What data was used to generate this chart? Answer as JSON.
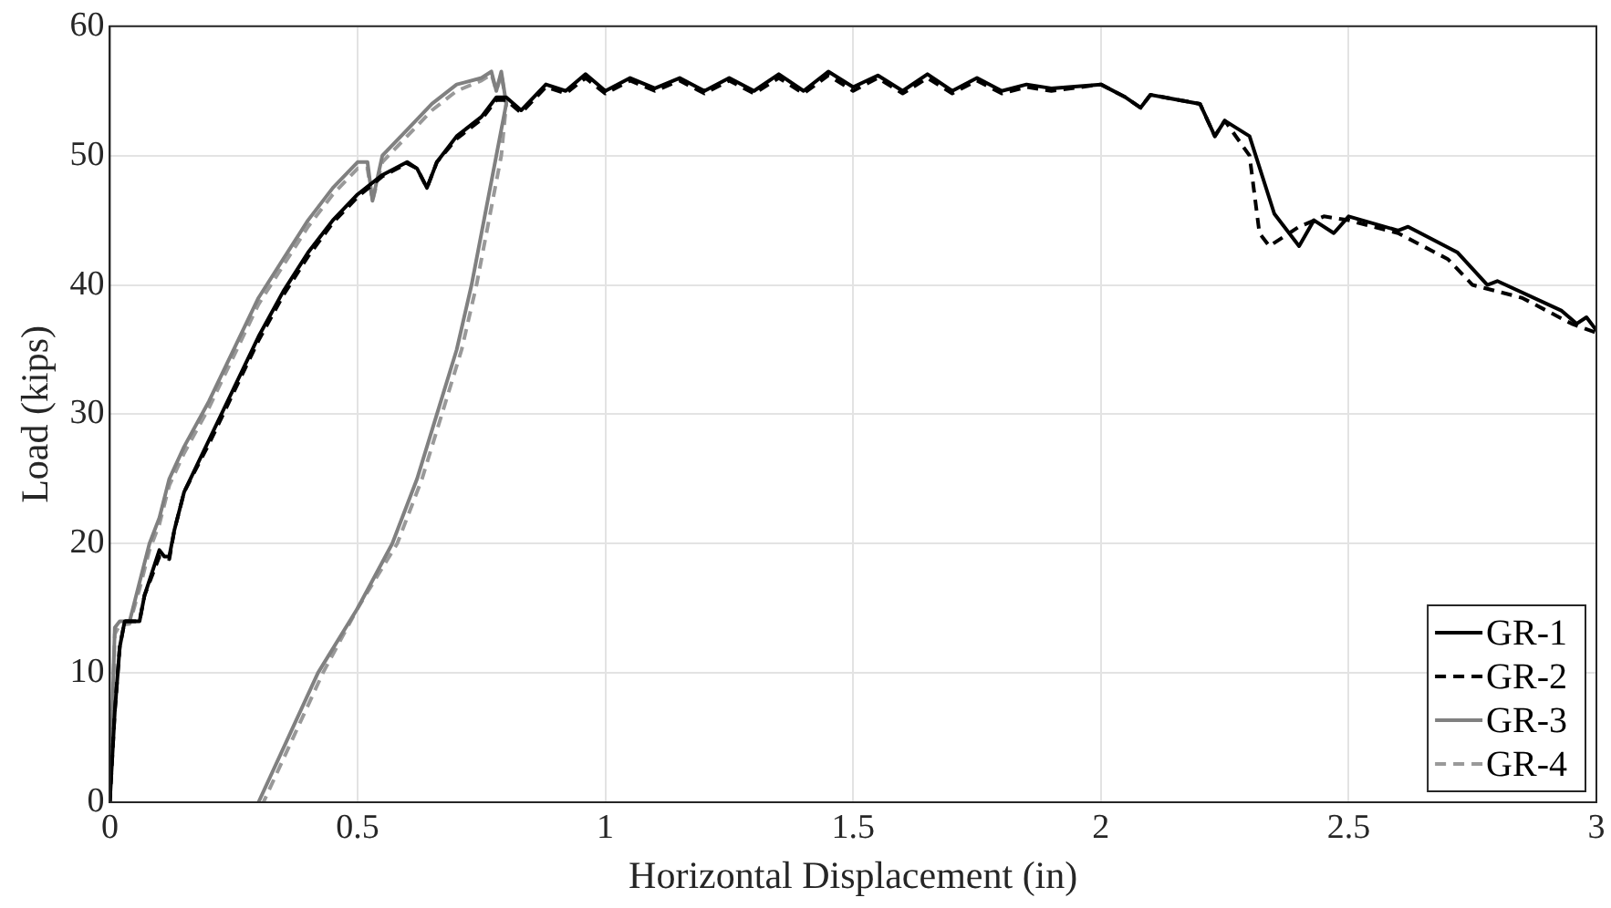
{
  "chart_data": {
    "type": "line",
    "xlabel": "Horizontal Displacement (in)",
    "ylabel": "Load (kips)",
    "xlim": [
      0,
      3
    ],
    "xticks": [
      0,
      0.5,
      1,
      1.5,
      2,
      2.5,
      3
    ],
    "ylim": [
      0,
      60
    ],
    "yticks": [
      0,
      10,
      20,
      30,
      40,
      50,
      60
    ],
    "grid": true,
    "legend": "bottom right",
    "marker": "none",
    "series": [
      {
        "name": "GR-1",
        "color": "#000000",
        "line_style": "solid",
        "x": [
          0,
          0.01,
          0.02,
          0.03,
          0.06,
          0.07,
          0.1,
          0.11,
          0.12,
          0.13,
          0.15,
          0.2,
          0.25,
          0.3,
          0.35,
          0.4,
          0.45,
          0.5,
          0.55,
          0.6,
          0.62,
          0.64,
          0.66,
          0.7,
          0.75,
          0.78,
          0.8,
          0.83,
          0.88,
          0.92,
          0.96,
          1.0,
          1.05,
          1.1,
          1.15,
          1.2,
          1.25,
          1.3,
          1.35,
          1.4,
          1.45,
          1.5,
          1.55,
          1.6,
          1.65,
          1.7,
          1.75,
          1.8,
          1.85,
          1.9,
          2.0,
          2.05,
          2.08,
          2.1,
          2.2,
          2.23,
          2.25,
          2.3,
          2.35,
          2.4,
          2.43,
          2.47,
          2.5,
          2.6,
          2.62,
          2.72,
          2.78,
          2.8,
          2.93,
          2.96,
          2.98,
          3.0
        ],
        "values": [
          0,
          7,
          12,
          14,
          14,
          16,
          19.5,
          19,
          19,
          21,
          24,
          28,
          32,
          36,
          39.5,
          42.5,
          45,
          47,
          48.5,
          49.5,
          49,
          47.5,
          49.5,
          51.5,
          53,
          54.5,
          54.5,
          53.5,
          55.5,
          55,
          56.3,
          55,
          56,
          55.2,
          56,
          55,
          56,
          55,
          56.3,
          55,
          56.5,
          55.3,
          56.2,
          55,
          56.3,
          55,
          56,
          55,
          55.5,
          55.2,
          55.5,
          54.5,
          53.7,
          54.7,
          54,
          51.5,
          52.7,
          51.5,
          45.5,
          43,
          45,
          44,
          45.3,
          44.2,
          44.5,
          42.5,
          40,
          40.3,
          38,
          37,
          37.5,
          36.5
        ]
      },
      {
        "name": "GR-2",
        "color": "#000000",
        "line_style": "dashed",
        "x": [
          0,
          0.01,
          0.02,
          0.03,
          0.06,
          0.07,
          0.1,
          0.11,
          0.12,
          0.13,
          0.15,
          0.2,
          0.25,
          0.3,
          0.35,
          0.4,
          0.45,
          0.5,
          0.55,
          0.6,
          0.62,
          0.64,
          0.66,
          0.7,
          0.75,
          0.78,
          0.8,
          0.83,
          0.88,
          0.92,
          0.96,
          1.0,
          1.05,
          1.1,
          1.15,
          1.2,
          1.25,
          1.3,
          1.35,
          1.4,
          1.45,
          1.5,
          1.55,
          1.6,
          1.65,
          1.7,
          1.75,
          1.8,
          1.85,
          1.9,
          2.0,
          2.05,
          2.08,
          2.1,
          2.2,
          2.23,
          2.25,
          2.3,
          2.32,
          2.34,
          2.4,
          2.45,
          2.5,
          2.6,
          2.7,
          2.75,
          2.85,
          2.9,
          2.95,
          3.0
        ],
        "values": [
          0,
          7,
          12,
          14,
          14,
          16,
          19,
          19,
          18.8,
          21,
          24,
          27.7,
          31.7,
          35.7,
          39.2,
          42.2,
          44.8,
          46.8,
          48.4,
          49.4,
          49,
          47.5,
          49.5,
          51.3,
          52.8,
          54.3,
          54.3,
          53.3,
          55.3,
          54.8,
          56,
          54.8,
          55.8,
          55,
          55.8,
          54.8,
          55.8,
          54.8,
          56,
          54.8,
          56.2,
          55,
          56,
          54.8,
          56,
          54.8,
          55.8,
          54.8,
          55.3,
          55,
          55.5,
          54.5,
          53.7,
          54.7,
          54,
          51.5,
          52.7,
          50,
          44,
          43,
          44.5,
          45.3,
          45,
          44,
          42,
          40,
          39,
          38,
          37,
          36.3
        ]
      },
      {
        "name": "GR-3",
        "color": "#808080",
        "line_style": "solid",
        "x": [
          0,
          0.01,
          0.02,
          0.04,
          0.06,
          0.08,
          0.1,
          0.12,
          0.15,
          0.2,
          0.25,
          0.3,
          0.35,
          0.4,
          0.45,
          0.5,
          0.52,
          0.53,
          0.55,
          0.6,
          0.65,
          0.7,
          0.75,
          0.77,
          0.78,
          0.79,
          0.8,
          0.78,
          0.76,
          0.73,
          0.7,
          0.66,
          0.62,
          0.57,
          0.5,
          0.42,
          0.36,
          0.3
        ],
        "values": [
          0,
          13.5,
          14,
          14,
          17,
          20,
          22,
          25,
          27.5,
          31,
          35,
          39,
          42,
          45,
          47.5,
          49.5,
          49.5,
          46.5,
          50,
          52,
          54,
          55.5,
          56,
          56.5,
          55,
          56.5,
          54,
          50,
          46,
          40,
          35,
          30,
          25,
          20,
          15,
          10,
          5,
          0
        ]
      },
      {
        "name": "GR-4",
        "color": "#999999",
        "line_style": "dashed",
        "x": [
          0,
          0.01,
          0.02,
          0.04,
          0.06,
          0.08,
          0.1,
          0.12,
          0.15,
          0.2,
          0.25,
          0.3,
          0.35,
          0.4,
          0.45,
          0.5,
          0.52,
          0.53,
          0.55,
          0.6,
          0.65,
          0.7,
          0.75,
          0.77,
          0.78,
          0.79,
          0.8,
          0.79,
          0.77,
          0.74,
          0.71,
          0.67,
          0.63,
          0.58,
          0.5,
          0.43,
          0.37,
          0.31
        ],
        "values": [
          0,
          13,
          13.7,
          13.8,
          16.5,
          19.5,
          21.5,
          24.5,
          27,
          30.5,
          34.5,
          38.5,
          41.5,
          44.5,
          47,
          49,
          49,
          46.5,
          49.5,
          51.5,
          53.5,
          55,
          55.8,
          56.3,
          55,
          56.3,
          54,
          50,
          46,
          40,
          35,
          30,
          25,
          20,
          15,
          10,
          5,
          0
        ]
      }
    ]
  }
}
